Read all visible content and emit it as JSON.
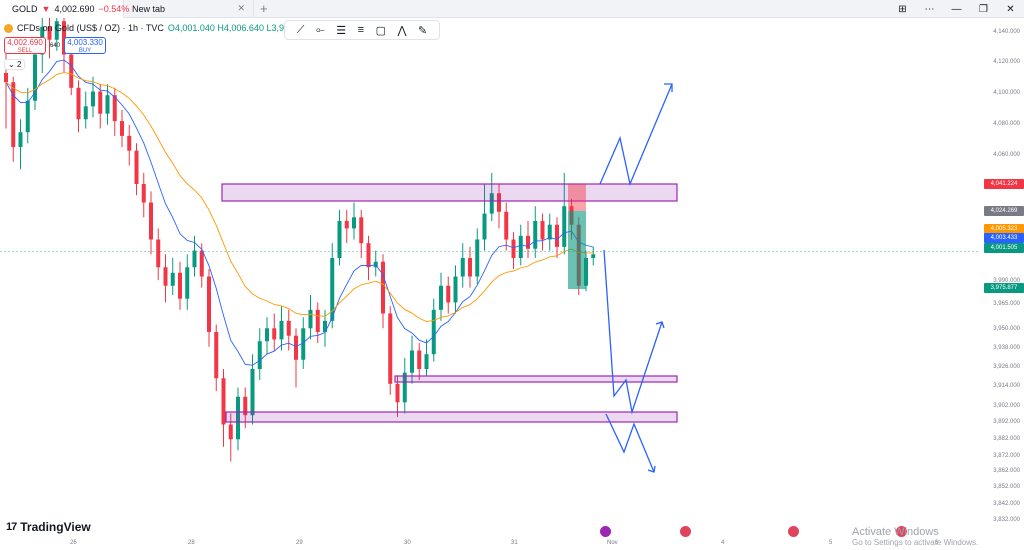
{
  "tabs": [
    {
      "symbol": "GOLD",
      "price": "4,002.690",
      "change": "−0.54%"
    },
    {
      "label": "New tab"
    }
  ],
  "legend": {
    "title": "CFDs on Gold (US$ / OZ) · 1h · TVC",
    "ohlc": "O4,001.040 H4,006.640 L3,995.9"
  },
  "sell": {
    "price": "4,002.690",
    "label": "SELL"
  },
  "buy": {
    "price": "4,003.330",
    "label": "BUY"
  },
  "spread": "640",
  "collapse_label": "2",
  "price_axis": {
    "labels": [
      "4,140.000",
      "4,120.000",
      "4,100.000",
      "4,080.000",
      "4,060.000",
      "3,990.000",
      "3,965.000",
      "3,950.000",
      "3,938.000",
      "3,926.000",
      "3,914.000",
      "3,902.000",
      "3,892.000",
      "3,882.000",
      "3,872.000",
      "3,862.000",
      "3,852.000",
      "3,842.000",
      "3,832.000"
    ],
    "tags": [
      {
        "text": "4,041.224",
        "color": "#f23645"
      },
      {
        "text": "4,024.269",
        "color": "#787b86"
      },
      {
        "text": "4,005.323",
        "color": "#ff9800"
      },
      {
        "text": "4,003.433",
        "color": "#2962ff"
      },
      {
        "text": "4,001.505",
        "color": "#089981"
      },
      {
        "text": "3,975.877",
        "color": "#089981"
      }
    ]
  },
  "time_axis": [
    "26",
    "28",
    "29",
    "30",
    "31",
    "Nov",
    "4",
    "5",
    "6"
  ],
  "brand": "TradingView",
  "watermark": {
    "line1": "Activate Windows",
    "line2": "Go to Settings to activate Windows."
  },
  "colors": {
    "up": "#089981",
    "down": "#f23645",
    "zone": "#9c27b0",
    "projection": "#2962ff",
    "ema_fast": "#2962ff",
    "ema_slow": "#ff9800"
  },
  "candles": [
    [
      4100,
      4095,
      4118,
      4070
    ],
    [
      4095,
      4060,
      4098,
      4052
    ],
    [
      4060,
      4068,
      4075,
      4048
    ],
    [
      4068,
      4085,
      4092,
      4062
    ],
    [
      4085,
      4110,
      4118,
      4080
    ],
    [
      4110,
      4125,
      4132,
      4100
    ],
    [
      4125,
      4118,
      4130,
      4108
    ],
    [
      4118,
      4128,
      4136,
      4112
    ],
    [
      4128,
      4110,
      4130,
      4100
    ],
    [
      4110,
      4092,
      4114,
      4088
    ],
    [
      4092,
      4075,
      4096,
      4068
    ],
    [
      4075,
      4082,
      4090,
      4070
    ],
    [
      4082,
      4090,
      4098,
      4076
    ],
    [
      4090,
      4078,
      4094,
      4070
    ],
    [
      4078,
      4088,
      4094,
      4072
    ],
    [
      4088,
      4074,
      4092,
      4066
    ],
    [
      4074,
      4066,
      4080,
      4060
    ],
    [
      4066,
      4058,
      4072,
      4050
    ],
    [
      4058,
      4040,
      4062,
      4034
    ],
    [
      4040,
      4030,
      4046,
      4022
    ],
    [
      4030,
      4010,
      4036,
      4002
    ],
    [
      4010,
      3995,
      4016,
      3988
    ],
    [
      3995,
      3985,
      4002,
      3976
    ],
    [
      3985,
      3992,
      4000,
      3980
    ],
    [
      3992,
      3978,
      3998,
      3972
    ],
    [
      3978,
      3995,
      4002,
      3972
    ],
    [
      3995,
      4004,
      4012,
      3990
    ],
    [
      4004,
      3990,
      4008,
      3984
    ],
    [
      3990,
      3960,
      3994,
      3952
    ],
    [
      3960,
      3935,
      3964,
      3928
    ],
    [
      3935,
      3910,
      3940,
      3898
    ],
    [
      3910,
      3902,
      3916,
      3890
    ],
    [
      3902,
      3925,
      3930,
      3896
    ],
    [
      3925,
      3915,
      3930,
      3908
    ],
    [
      3915,
      3940,
      3948,
      3910
    ],
    [
      3940,
      3955,
      3962,
      3934
    ],
    [
      3955,
      3962,
      3968,
      3948
    ],
    [
      3962,
      3956,
      3970,
      3950
    ],
    [
      3956,
      3966,
      3974,
      3950
    ],
    [
      3966,
      3958,
      3972,
      3950
    ],
    [
      3958,
      3945,
      3962,
      3930
    ],
    [
      3945,
      3962,
      3968,
      3940
    ],
    [
      3962,
      3972,
      3980,
      3956
    ],
    [
      3972,
      3960,
      3976,
      3954
    ],
    [
      3960,
      3966,
      3972,
      3952
    ],
    [
      3966,
      4000,
      4008,
      3962
    ],
    [
      4000,
      4020,
      4026,
      3996
    ],
    [
      4020,
      4016,
      4026,
      4008
    ],
    [
      4016,
      4022,
      4030,
      4010
    ],
    [
      4022,
      4008,
      4026,
      4000
    ],
    [
      4008,
      3995,
      4012,
      3988
    ],
    [
      3995,
      3998,
      4004,
      3990
    ],
    [
      3998,
      3970,
      4002,
      3962
    ],
    [
      3970,
      3932,
      3974,
      3926
    ],
    [
      3932,
      3922,
      3936,
      3914
    ],
    [
      3922,
      3938,
      3946,
      3916
    ],
    [
      3938,
      3950,
      3958,
      3932
    ],
    [
      3950,
      3940,
      3954,
      3934
    ],
    [
      3940,
      3948,
      3956,
      3936
    ],
    [
      3948,
      3972,
      3978,
      3944
    ],
    [
      3972,
      3985,
      3992,
      3966
    ],
    [
      3985,
      3976,
      3990,
      3970
    ],
    [
      3976,
      3990,
      3996,
      3970
    ],
    [
      3990,
      4000,
      4008,
      3984
    ],
    [
      4000,
      3990,
      4006,
      3984
    ],
    [
      3990,
      4010,
      4016,
      3986
    ],
    [
      4010,
      4024,
      4040,
      4004
    ],
    [
      4024,
      4035,
      4046,
      4020
    ],
    [
      4035,
      4025,
      4040,
      4016
    ],
    [
      4025,
      4010,
      4030,
      4004
    ],
    [
      4010,
      4000,
      4014,
      3994
    ],
    [
      4000,
      4012,
      4018,
      3996
    ],
    [
      4012,
      4005,
      4020,
      4000
    ],
    [
      4005,
      4020,
      4028,
      4000
    ],
    [
      4020,
      4010,
      4024,
      4004
    ],
    [
      4010,
      4018,
      4024,
      4004
    ],
    [
      4018,
      4006,
      4022,
      4000
    ],
    [
      4006,
      4028,
      4046,
      4002
    ],
    [
      4028,
      4018,
      4032,
      4010
    ],
    [
      4018,
      3985,
      4022,
      3980
    ],
    [
      3985,
      4000,
      4004,
      3982
    ],
    [
      4000,
      4002,
      4006,
      3996
    ]
  ]
}
